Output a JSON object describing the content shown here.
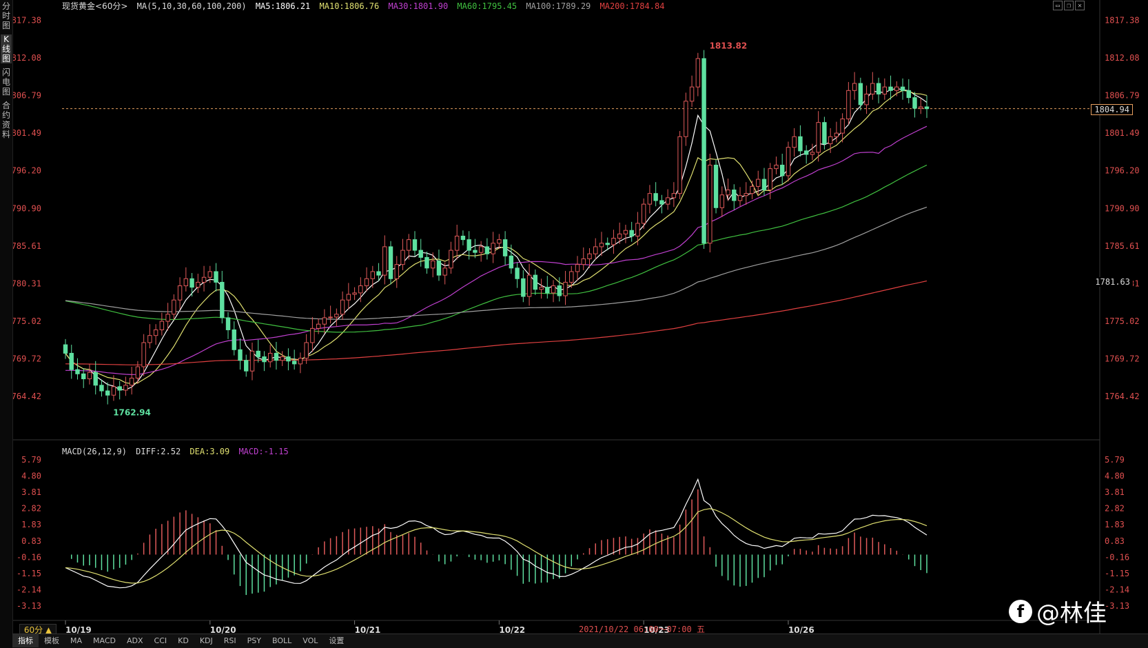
{
  "sidebar": {
    "tabs": [
      {
        "label": "分时图",
        "active": false
      },
      {
        "label": "K线图",
        "active": true
      },
      {
        "label": "闪电图",
        "active": false
      },
      {
        "label": "合约资料",
        "active": false
      }
    ]
  },
  "header": {
    "symbol": "现货黄金<60分>",
    "ma_params": "MA(5,10,30,60,100,200)",
    "ma5": "MA5:1806.21",
    "ma10": "MA10:1806.76",
    "ma30": "MA30:1801.90",
    "ma60": "MA60:1795.45",
    "ma100": "MA100:1789.29",
    "ma200": "MA200:1784.84"
  },
  "macd_header": {
    "params": "MACD(26,12,9)",
    "diff": "DIFF:2.52",
    "dea": "DEA:3.09",
    "macd": "MACD:-1.15"
  },
  "colors": {
    "up": "#e05a5a",
    "down": "#5ee0a0",
    "ma5": "#ffffff",
    "ma10": "#e0e070",
    "ma30": "#c040d0",
    "ma60": "#40c040",
    "ma100": "#a0a0a0",
    "ma200": "#e04040",
    "axis_text": "#e05050"
  },
  "price_axis": {
    "ticks": [
      "1817.38",
      "1812.08",
      "1806.79",
      "1801.49",
      "1796.20",
      "1790.90",
      "1785.61",
      "1780.31",
      "1775.02",
      "1769.72",
      "1764.42"
    ],
    "current_price": "1804.94",
    "cursor_price": "1781.63"
  },
  "macd_axis": {
    "ticks": [
      "5.79",
      "4.80",
      "3.81",
      "2.82",
      "1.83",
      "0.83",
      "-0.16",
      "-1.15",
      "-2.14",
      "-3.13"
    ]
  },
  "annotations": {
    "high": "1813.82",
    "low": "1762.94"
  },
  "x_axis": {
    "dates": [
      "10/19",
      "10/20",
      "10/21",
      "10/22",
      "10/23",
      "10/26"
    ]
  },
  "cursor_time": "2021/10/22 06:00～07:00 五",
  "period": "60分 ▲",
  "bottom_tabs": [
    {
      "label": "指标",
      "active": true
    },
    {
      "label": "模板",
      "active": false
    },
    {
      "label": "MA",
      "active": false
    },
    {
      "label": "MACD",
      "active": false
    },
    {
      "label": "ADX",
      "active": false
    },
    {
      "label": "CCI",
      "active": false
    },
    {
      "label": "KD",
      "active": false
    },
    {
      "label": "KDJ",
      "active": false
    },
    {
      "label": "RSI",
      "active": false
    },
    {
      "label": "PSY",
      "active": false
    },
    {
      "label": "BOLL",
      "active": false
    },
    {
      "label": "VOL",
      "active": false
    },
    {
      "label": "设置",
      "active": false
    }
  ],
  "watermark": "@林佳",
  "chart_data": {
    "type": "candlestick",
    "price_range": [
      1762.0,
      1818.5
    ],
    "macd_range": [
      -3.6,
      6.0
    ],
    "candles_close": [
      1770.5,
      1768.2,
      1767.6,
      1766.9,
      1767.8,
      1766.0,
      1765.2,
      1764.6,
      1765.8,
      1765.3,
      1766.0,
      1767.0,
      1768.6,
      1772.0,
      1773.0,
      1773.8,
      1775.0,
      1776.0,
      1778.0,
      1780.0,
      1781.0,
      1779.8,
      1780.5,
      1781.2,
      1782.0,
      1780.5,
      1775.5,
      1773.8,
      1771.0,
      1769.5,
      1768.0,
      1770.8,
      1770.0,
      1769.3,
      1770.5,
      1769.5,
      1770.0,
      1769.4,
      1769.0,
      1769.8,
      1772.0,
      1774.0,
      1774.6,
      1775.5,
      1775.6,
      1776.0,
      1778.0,
      1778.8,
      1779.0,
      1780.0,
      1781.0,
      1782.0,
      1781.5,
      1785.5,
      1781.0,
      1783.0,
      1785.0,
      1786.5,
      1785.0,
      1784.0,
      1782.5,
      1783.5,
      1781.5,
      1782.5,
      1785.0,
      1787.0,
      1786.5,
      1785.0,
      1784.7,
      1785.5,
      1784.5,
      1786.0,
      1786.5,
      1784.2,
      1782.5,
      1781.0,
      1778.5,
      1781.5,
      1779.5,
      1779.8,
      1779.0,
      1780.0,
      1778.6,
      1780.5,
      1782.0,
      1783.0,
      1783.8,
      1784.5,
      1785.5,
      1786.0,
      1785.8,
      1786.7,
      1787.3,
      1787.8,
      1787.0,
      1788.8,
      1791.5,
      1793.0,
      1792.0,
      1791.5,
      1792.4,
      1793.0,
      1801.0,
      1806.0,
      1808.0,
      1812.0,
      1786.0,
      1797.0,
      1791.0,
      1792.8,
      1793.5,
      1792.0,
      1792.7,
      1793.0,
      1794.0,
      1795.0,
      1793.5,
      1796.5,
      1797.0,
      1795.5,
      1799.5,
      1801.0,
      1799.0,
      1798.5,
      1798.8,
      1803.0,
      1800.0,
      1801.0,
      1801.5,
      1803.5,
      1807.5,
      1808.5,
      1805.5,
      1807.0,
      1808.5,
      1807.0,
      1808.0,
      1807.5,
      1808.0,
      1807.5,
      1806.5,
      1805.0,
      1805.2,
      1804.94
    ]
  }
}
